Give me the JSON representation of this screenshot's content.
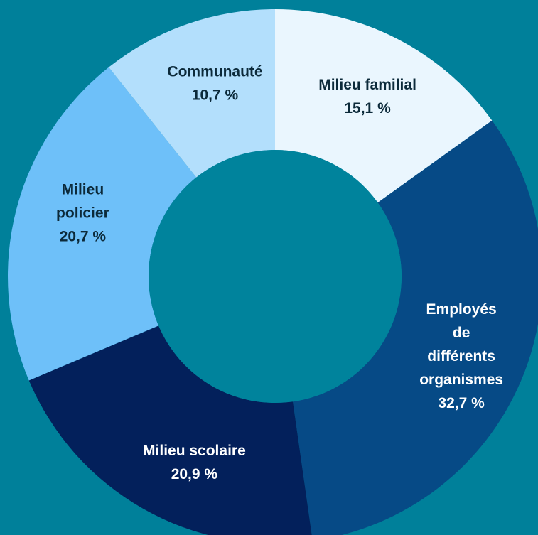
{
  "chart_data": {
    "type": "pie",
    "variant": "donut",
    "start": "top, clockwise",
    "background_color": "#00809a",
    "hole_color": "#00839c",
    "slices": [
      {
        "name": "Milieu familial",
        "label_lines": [
          "Milieu familial",
          "15,1 %"
        ],
        "value": 15.1,
        "color": "#eaf6fe",
        "text_color": "#0c2a3a"
      },
      {
        "name": "Employés de différents organismes",
        "label_lines": [
          "Employés",
          "de",
          "différents",
          "organismes",
          "32,7 %"
        ],
        "value": 32.7,
        "color": "#064a86",
        "text_color": "#ffffff"
      },
      {
        "name": "Milieu scolaire",
        "label_lines": [
          "Milieu scolaire",
          "20,9  %"
        ],
        "value": 20.9,
        "color": "#03205b",
        "text_color": "#ffffff"
      },
      {
        "name": "Milieu policier",
        "label_lines": [
          "Milieu",
          "policier",
          "20,7 %"
        ],
        "value": 20.7,
        "color": "#6ec0f9",
        "text_color": "#0c2a3a"
      },
      {
        "name": "Communauté",
        "label_lines": [
          "Communauté",
          "10,7 %"
        ],
        "value": 10.7,
        "color": "#b3dffc",
        "text_color": "#0c2a3a"
      }
    ]
  }
}
